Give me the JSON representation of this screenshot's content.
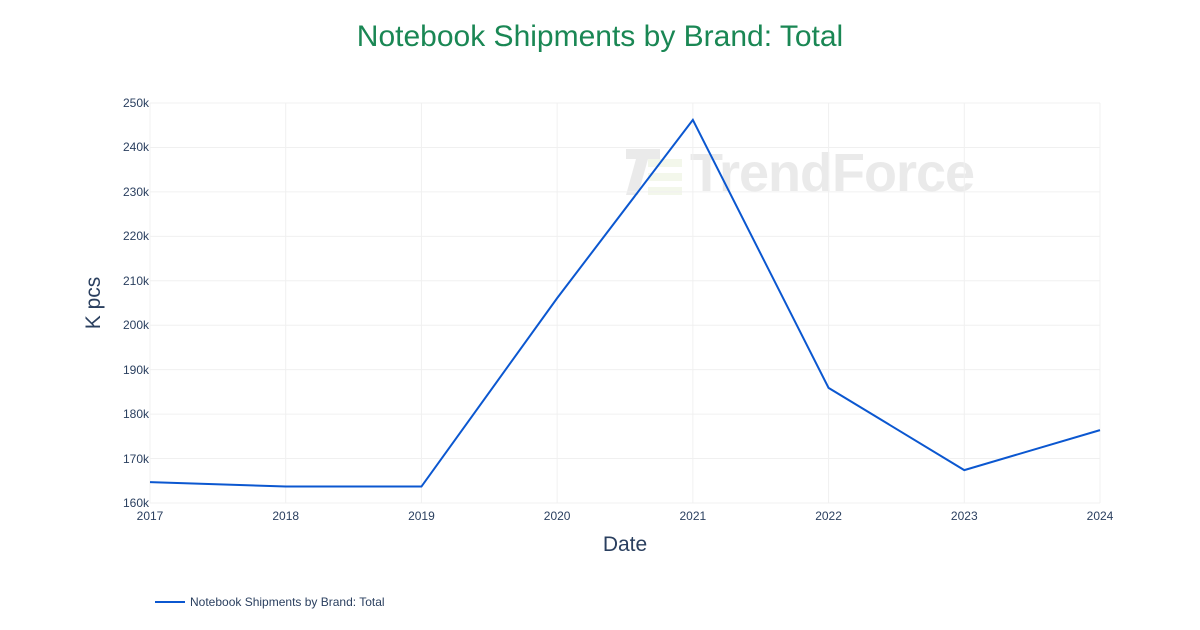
{
  "title": "Notebook Shipments by Brand: Total",
  "colors": {
    "title": "#1a8754",
    "line": "#0b57d0",
    "axis_text": "#2a3f5f",
    "grid": "#f0f0f0",
    "watermark": "#d6d6d6"
  },
  "axes": {
    "x_title": "Date",
    "y_title": "K pcs",
    "x_ticks": [
      "2017",
      "2018",
      "2019",
      "2020",
      "2021",
      "2022",
      "2023",
      "2024"
    ],
    "y_ticks": [
      "250k",
      "240k",
      "230k",
      "220k",
      "210k",
      "200k",
      "190k",
      "180k",
      "170k",
      "160k"
    ]
  },
  "legend": {
    "items": [
      {
        "label": "Notebook Shipments by Brand: Total"
      }
    ]
  },
  "watermark": {
    "text": "TrendForce"
  },
  "chart_data": {
    "type": "line",
    "title": "Notebook Shipments by Brand: Total",
    "xlabel": "Date",
    "ylabel": "K pcs",
    "categories": [
      "2017",
      "2018",
      "2019",
      "2020",
      "2021",
      "2022",
      "2023",
      "2024"
    ],
    "series": [
      {
        "name": "Notebook Shipments by Brand: Total",
        "values": [
          164700,
          163700,
          163700,
          206100,
          246200,
          185900,
          167400,
          176400
        ]
      }
    ],
    "ylim": [
      160000,
      250000
    ],
    "xlim": [
      "2017",
      "2024"
    ],
    "grid": true,
    "legend_position": "bottom-left"
  }
}
